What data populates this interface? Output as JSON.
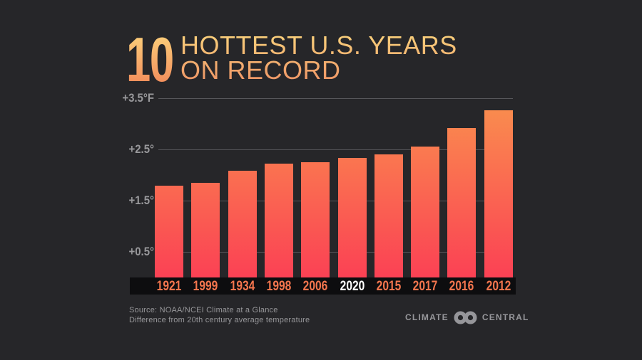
{
  "header": {
    "big_number": "10",
    "title_line1": "HOTTEST U.S. YEARS",
    "title_line2": "ON RECORD"
  },
  "chart_data": {
    "type": "bar",
    "title": "10 Hottest U.S. Years on Record",
    "categories": [
      "1921",
      "1999",
      "1934",
      "1998",
      "2006",
      "2020",
      "2015",
      "2017",
      "2016",
      "2012"
    ],
    "values": [
      1.79,
      1.85,
      2.09,
      2.22,
      2.25,
      2.34,
      2.4,
      2.56,
      2.92,
      3.26
    ],
    "unit": "°F",
    "highlighted_category": "2020",
    "xlabel": "",
    "ylabel": "Difference from 20th century average temperature (°F)",
    "ylim": [
      0,
      3.5
    ],
    "yticks": [
      {
        "value": 0.5,
        "label": "+0.5°"
      },
      {
        "value": 1.5,
        "label": "+1.5°"
      },
      {
        "value": 2.5,
        "label": "+2.5°"
      },
      {
        "value": 3.5,
        "label": "+3.5°F"
      }
    ],
    "grid": true,
    "legend": false
  },
  "colors": {
    "background": "#262629",
    "bar_gradient_bottom": "#fb4154",
    "bar_gradient_top": "#f9904e",
    "title_gradient_top": "#fdd77e",
    "title_gradient_bottom": "#f18457",
    "year_label": "#f5764e",
    "year_label_highlight": "#ffffff",
    "axis_label": "#98989b",
    "gridline": "#56565a",
    "label_strip": "#0d0d0f",
    "footer_text": "#97979a"
  },
  "footer": {
    "source_line1": "Source: NOAA/NCEI Climate at a Glance",
    "source_line2": "Difference from 20th century average temperature",
    "logo_left": "CLIMATE",
    "logo_right": "CENTRAL"
  }
}
